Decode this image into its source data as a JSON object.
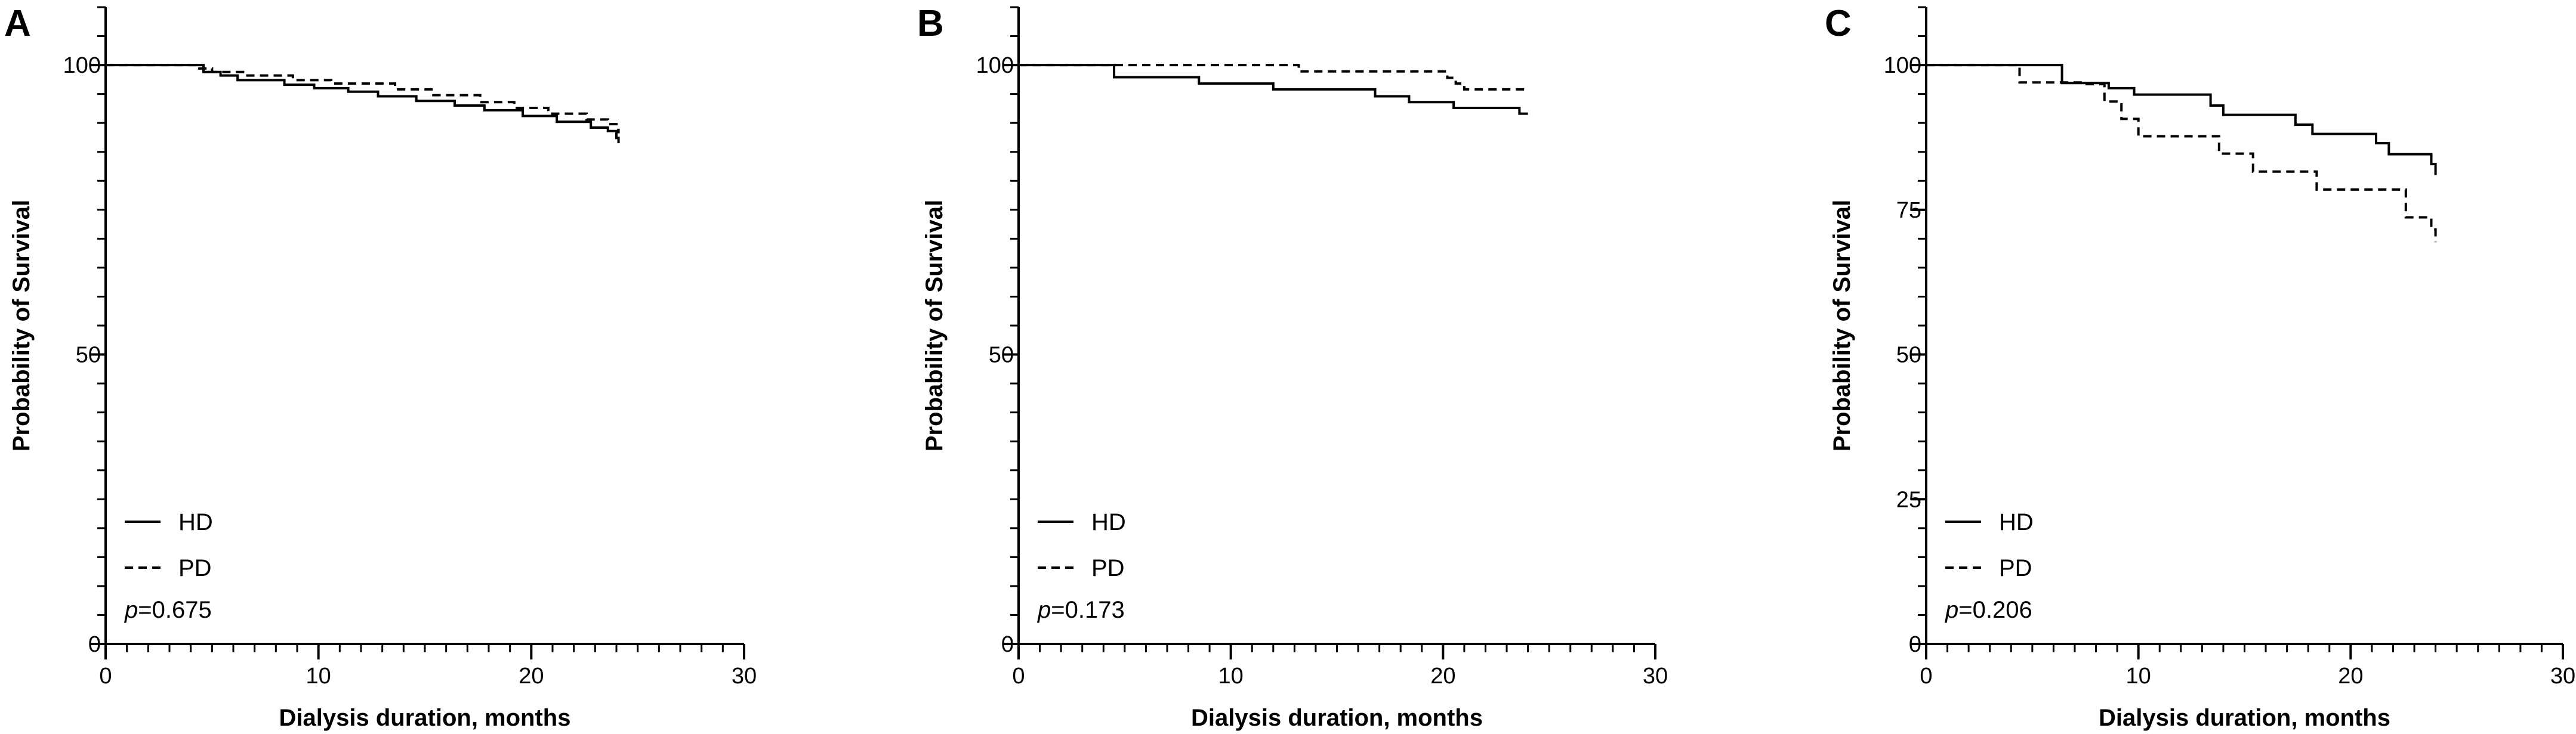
{
  "chart_data": [
    {
      "type": "line",
      "panel": "A",
      "xlabel": "Dialysis duration, months",
      "ylabel": "Probability of Survival",
      "xlim": [
        0,
        30
      ],
      "ylim": [
        0,
        110
      ],
      "x_ticks": [
        0,
        10,
        20,
        30
      ],
      "y_ticks": [
        0,
        50,
        100
      ],
      "pvalue": "=0.675",
      "legend_position": "bottom-left",
      "series": [
        {
          "name": "HD",
          "style": "solid",
          "x": [
            0,
            4.6,
            5.4,
            6.2,
            8.4,
            9.8,
            11.4,
            12.8,
            14.6,
            16.4,
            17.8,
            19.6,
            21.2,
            22.8,
            23.6,
            24.0,
            24.1
          ],
          "y": [
            100,
            98.8,
            98.2,
            97.4,
            96.6,
            96.0,
            95.4,
            94.6,
            93.8,
            93.0,
            92.2,
            91.2,
            90.2,
            89.2,
            88.6,
            87.4,
            86.5
          ]
        },
        {
          "name": "PD",
          "style": "dashed",
          "x": [
            0,
            4.4,
            5.0,
            6.6,
            8.8,
            10.6,
            13.6,
            15.4,
            17.6,
            19.2,
            20.8,
            22.6,
            23.6,
            24.0,
            24.1
          ],
          "y": [
            100,
            99.4,
            98.8,
            98.2,
            97.4,
            96.8,
            95.8,
            94.8,
            93.6,
            92.6,
            91.6,
            90.6,
            89.8,
            88.8,
            88.2
          ]
        }
      ]
    },
    {
      "type": "line",
      "panel": "B",
      "xlabel": "Dialysis duration, months",
      "ylabel": "Probability of Survival",
      "xlim": [
        0,
        30
      ],
      "ylim": [
        0,
        110
      ],
      "x_ticks": [
        0,
        10,
        20,
        30
      ],
      "y_ticks": [
        0,
        50,
        100
      ],
      "pvalue": "=0.173",
      "legend_position": "bottom-left",
      "series": [
        {
          "name": "HD",
          "style": "solid",
          "x": [
            0,
            4.5,
            8.5,
            12.0,
            16.8,
            18.4,
            20.5,
            22.8,
            23.6,
            24.0
          ],
          "y": [
            100,
            97.9,
            96.8,
            95.8,
            94.6,
            93.6,
            92.6,
            92.6,
            91.6,
            91.6
          ],
          "x_end": 24.0
        },
        {
          "name": "PD",
          "style": "dashed",
          "x": [
            0,
            13.2,
            20.2,
            20.6,
            21.0,
            24.0
          ],
          "y": [
            100,
            98.9,
            97.8,
            96.8,
            95.8,
            95.8
          ],
          "x_end": 24.0
        }
      ]
    },
    {
      "type": "line",
      "panel": "C",
      "xlabel": "Dialysis duration, months",
      "ylabel": "Probability of Survival",
      "xlim": [
        0,
        30
      ],
      "ylim": [
        0,
        110
      ],
      "x_ticks": [
        0,
        10,
        20,
        30
      ],
      "y_ticks": [
        0,
        25,
        50,
        75,
        100
      ],
      "pvalue": "=0.206",
      "legend_position": "bottom-left",
      "series": [
        {
          "name": "HD",
          "style": "solid",
          "x": [
            0,
            6.4,
            8.6,
            9.8,
            13.4,
            14.0,
            17.4,
            18.2,
            21.2,
            21.8,
            23.8,
            24.0
          ],
          "y": [
            100,
            96.9,
            96.0,
            94.9,
            93.0,
            91.4,
            89.7,
            88.1,
            86.5,
            84.6,
            82.9,
            81.0
          ],
          "x_end": 24.0
        },
        {
          "name": "PD",
          "style": "dashed",
          "x": [
            0,
            4.4,
            7.4,
            8.4,
            9.2,
            10.0,
            13.8,
            15.4,
            18.4,
            22.6,
            23.8,
            24.0
          ],
          "y": [
            100,
            97.0,
            96.7,
            93.7,
            90.7,
            87.7,
            84.7,
            81.6,
            78.5,
            73.7,
            71.6,
            69.4
          ],
          "x_end": 24.0
        }
      ]
    }
  ]
}
